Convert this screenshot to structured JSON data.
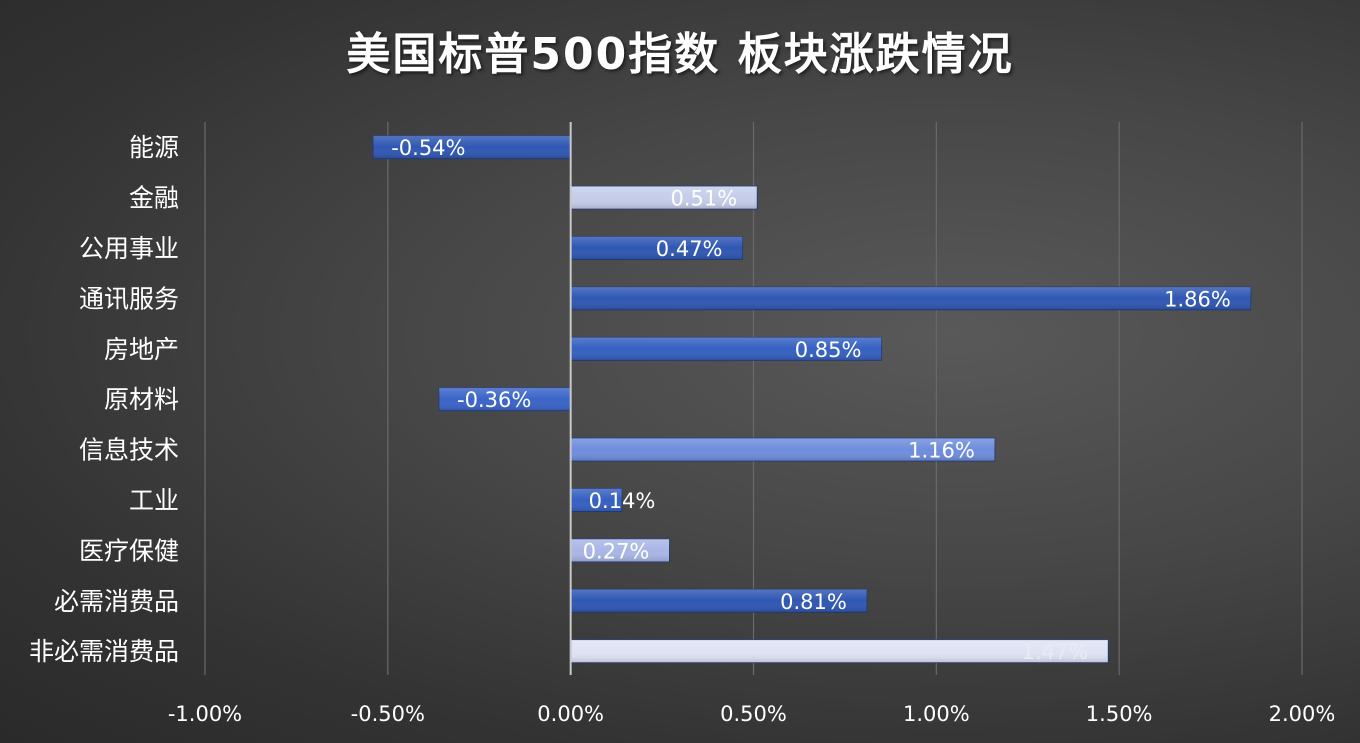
{
  "chart_data": {
    "type": "bar",
    "orientation": "horizontal",
    "title": "美国标普500指数 板块涨跌情况",
    "categories": [
      "能源",
      "金融",
      "公用事业",
      "通讯服务",
      "房地产",
      "原材料",
      "信息技术",
      "工业",
      "医疗保健",
      "必需消费品",
      "非必需消费品"
    ],
    "values": [
      -0.54,
      0.51,
      0.47,
      1.86,
      0.85,
      -0.36,
      1.16,
      0.14,
      0.27,
      0.81,
      1.47
    ],
    "data_labels": [
      "-0.54%",
      "0.51%",
      "0.47%",
      "1.86%",
      "0.85%",
      "-0.36%",
      "1.16%",
      "0.14%",
      "0.27%",
      "0.81%",
      "1.47%"
    ],
    "bar_colors": [
      "#2f57b3",
      "#c5cdea",
      "#2f57b3",
      "#2f57b3",
      "#3560c2",
      "#3a64c8",
      "#6e8ddd",
      "#3560c2",
      "#a9b6e6",
      "#2f57b3",
      "#dfe3f4"
    ],
    "label_colors": [
      "#ffffff",
      "#ffffff",
      "#ffffff",
      "#ffffff",
      "#ffffff",
      "#ffffff",
      "#ffffff",
      "#ffffff",
      "#ffffff",
      "#ffffff",
      "#e8ebf6"
    ],
    "xlim": [
      -1.0,
      2.0
    ],
    "x_ticks": [
      -1.0,
      -0.5,
      0.0,
      0.5,
      1.0,
      1.5,
      2.0
    ],
    "x_tick_labels": [
      "-1.00%",
      "-0.50%",
      "0.00%",
      "0.50%",
      "1.00%",
      "1.50%",
      "2.00%"
    ],
    "grid": "vertical",
    "xlabel": "",
    "ylabel": ""
  }
}
